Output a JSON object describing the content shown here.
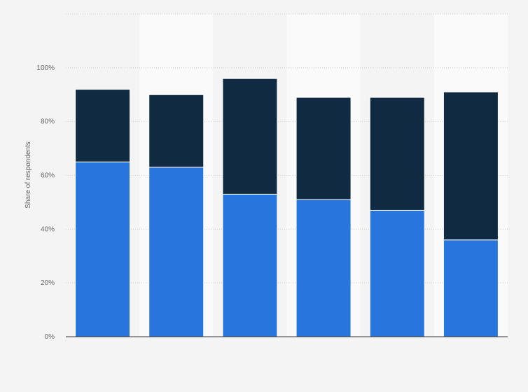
{
  "chart_data": {
    "type": "bar",
    "stacked": true,
    "categories": [
      "",
      "",
      "",
      "",
      "",
      ""
    ],
    "series": [
      {
        "values": [
          65,
          63,
          53,
          51,
          47,
          36
        ],
        "color": "#2876dd"
      },
      {
        "values": [
          27,
          27,
          43,
          38,
          42,
          55
        ],
        "color": "#0f2a41"
      }
    ],
    "title": "",
    "xlabel": "",
    "ylabel": "Share of respondents",
    "ylim": [
      0,
      120
    ],
    "yticks": [
      0,
      20,
      40,
      60,
      80,
      100
    ],
    "ytick_labels": [
      "0%",
      "20%",
      "40%",
      "60%",
      "80%",
      "100%"
    ],
    "grid": true,
    "legend": "none"
  }
}
